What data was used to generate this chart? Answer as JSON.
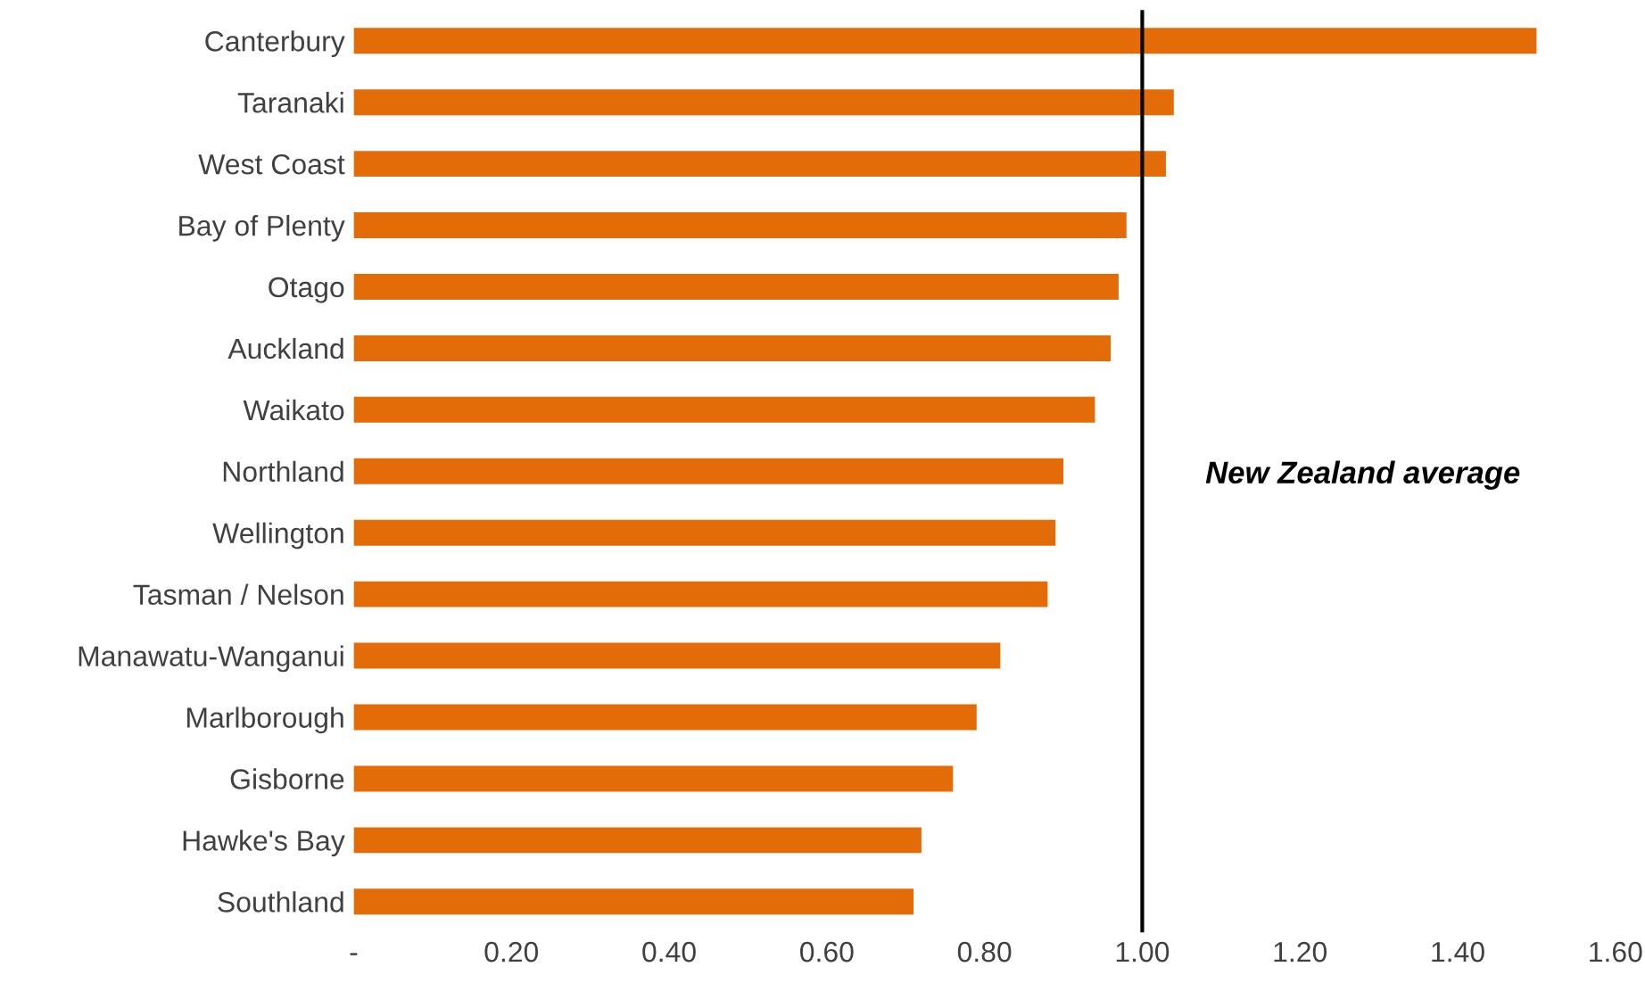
{
  "chart_data": {
    "type": "bar",
    "orientation": "horizontal",
    "categories": [
      "Canterbury",
      "Taranaki",
      "West Coast",
      "Bay of Plenty",
      "Otago",
      "Auckland",
      "Waikato",
      "Northland",
      "Wellington",
      "Tasman / Nelson",
      "Manawatu-Wanganui",
      "Marlborough",
      "Gisborne",
      "Hawke's Bay",
      "Southland"
    ],
    "values": [
      1.5,
      1.04,
      1.03,
      0.98,
      0.97,
      0.96,
      0.94,
      0.9,
      0.89,
      0.88,
      0.82,
      0.79,
      0.76,
      0.72,
      0.71
    ],
    "color": "#e36c09",
    "xlim": [
      0,
      1.6
    ],
    "xticks": [
      {
        "value": 0,
        "label": "-"
      },
      {
        "value": 0.2,
        "label": "0.20"
      },
      {
        "value": 0.4,
        "label": "0.40"
      },
      {
        "value": 0.6,
        "label": "0.60"
      },
      {
        "value": 0.8,
        "label": "0.80"
      },
      {
        "value": 1.0,
        "label": "1.00"
      },
      {
        "value": 1.2,
        "label": "1.20"
      },
      {
        "value": 1.4,
        "label": "1.40"
      },
      {
        "value": 1.6,
        "label": "1.60"
      }
    ],
    "ref_lines": [
      {
        "axis": "x",
        "value": 1.0,
        "label": "New Zealand average",
        "color": "#000000"
      }
    ],
    "grid": false,
    "legend": false
  }
}
